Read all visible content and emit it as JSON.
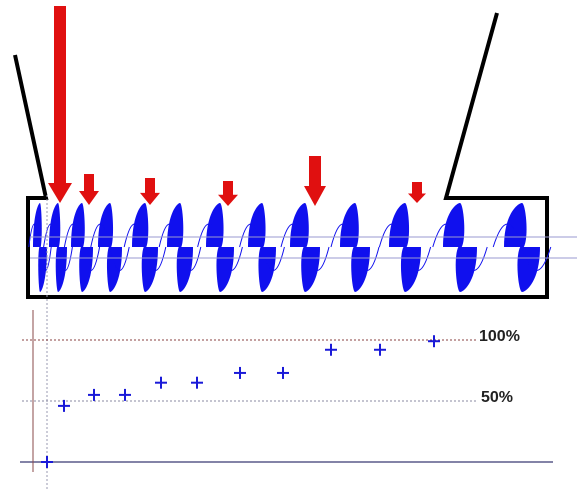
{
  "labels": {
    "full": "100%",
    "half": "50%"
  },
  "colors": {
    "outline": "#000000",
    "wave": "#1010ee",
    "arrow": "#e01010",
    "axis": "#5a5a8a",
    "guide_100": "#8a4040",
    "guide_50": "#8a8aa0",
    "marker": "#1a1ad8"
  },
  "chart_data": {
    "type": "scatter",
    "ylim": [
      0,
      100
    ],
    "gridlines": [
      50,
      100
    ],
    "points": [
      0,
      46,
      55,
      55,
      65,
      65,
      73,
      73,
      92,
      92,
      99
    ]
  }
}
